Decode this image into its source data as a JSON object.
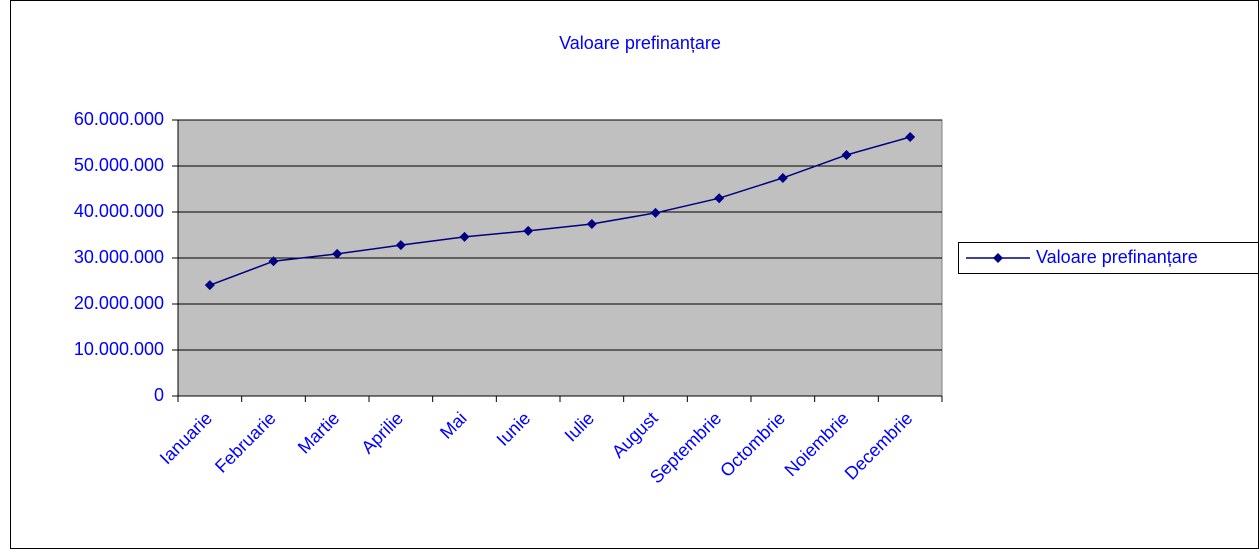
{
  "chart_data": {
    "type": "line",
    "title": "Valoare prefinanțare",
    "categories": [
      "Ianuarie",
      "Februarie",
      "Martie",
      "Aprilie",
      "Mai",
      "Iunie",
      "Iulie",
      "August",
      "Septembrie",
      "Octombrie",
      "Noiembrie",
      "Decembrie"
    ],
    "series": [
      {
        "name": "Valoare prefinanțare",
        "color": "#000080",
        "values": [
          24100000,
          29300000,
          30900000,
          32800000,
          34600000,
          35900000,
          37400000,
          39800000,
          43000000,
          47400000,
          52400000,
          56300000
        ]
      }
    ],
    "ylim": [
      0,
      60000000
    ],
    "yticks": [
      0,
      {
        "value": 10000000,
        "label": "10.000.000"
      },
      {
        "value": 20000000,
        "label": "20.000.000"
      },
      {
        "value": 30000000,
        "label": "30.000.000"
      },
      {
        "value": 40000000,
        "label": "40.000.000"
      },
      {
        "value": 50000000,
        "label": "50.000.000"
      },
      {
        "value": 60000000,
        "label": "60.000.000"
      }
    ],
    "grid": true,
    "legend": "right"
  }
}
